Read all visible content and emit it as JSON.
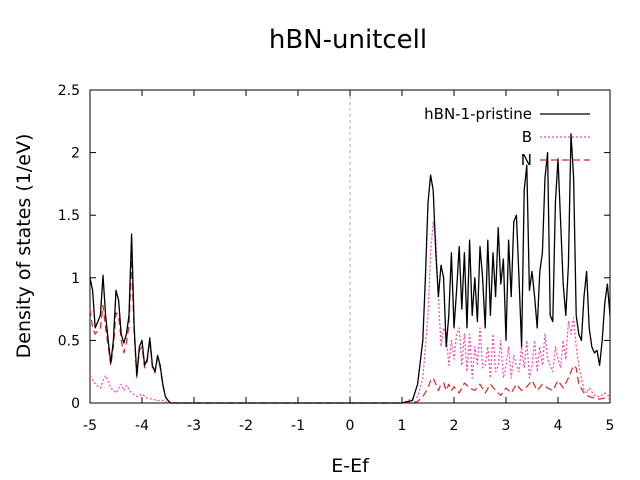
{
  "chart_data": {
    "type": "line",
    "title": "hBN-unitcell",
    "xlabel": "E-Ef",
    "ylabel": "Density of states (1/eV)",
    "xlim": [
      -5,
      5
    ],
    "ylim": [
      0,
      2.5
    ],
    "xticks": [
      -5,
      -4,
      -3,
      -2,
      -1,
      0,
      1,
      2,
      3,
      4,
      5
    ],
    "yticks": [
      0,
      0.5,
      1,
      1.5,
      2,
      2.5
    ],
    "xtick_labels": [
      "-5",
      "-4",
      "-3",
      "-2",
      "-1",
      "0",
      "1",
      "2",
      "3",
      "4",
      "5"
    ],
    "ytick_labels": [
      "0",
      "0.5",
      "1",
      "1.5",
      "2",
      "2.5"
    ],
    "grid": false,
    "legend_position": "top-right",
    "fermi_line_x": 0,
    "series": [
      {
        "name": "hBN-1-pristine",
        "color": "#000000",
        "dash": "solid",
        "x": [
          -5.0,
          -4.95,
          -4.9,
          -4.85,
          -4.8,
          -4.75,
          -4.7,
          -4.65,
          -4.6,
          -4.55,
          -4.5,
          -4.45,
          -4.4,
          -4.35,
          -4.3,
          -4.25,
          -4.2,
          -4.15,
          -4.1,
          -4.05,
          -4.0,
          -3.95,
          -3.9,
          -3.85,
          -3.8,
          -3.75,
          -3.7,
          -3.65,
          -3.6,
          -3.55,
          -3.5,
          -3.45,
          -3.4,
          -3.35,
          -3.3,
          -3.25,
          -3.2,
          -3.1,
          -3.0,
          1.0,
          1.2,
          1.3,
          1.4,
          1.45,
          1.5,
          1.55,
          1.6,
          1.65,
          1.7,
          1.75,
          1.8,
          1.85,
          1.9,
          1.95,
          2.0,
          2.05,
          2.1,
          2.15,
          2.2,
          2.25,
          2.3,
          2.35,
          2.4,
          2.45,
          2.5,
          2.55,
          2.6,
          2.65,
          2.7,
          2.75,
          2.8,
          2.85,
          2.9,
          2.95,
          3.0,
          3.05,
          3.1,
          3.15,
          3.2,
          3.25,
          3.3,
          3.35,
          3.4,
          3.45,
          3.5,
          3.55,
          3.6,
          3.65,
          3.7,
          3.75,
          3.8,
          3.85,
          3.9,
          3.95,
          4.0,
          4.05,
          4.1,
          4.15,
          4.2,
          4.25,
          4.3,
          4.35,
          4.4,
          4.45,
          4.5,
          4.55,
          4.6,
          4.65,
          4.7,
          4.75,
          4.8,
          4.85,
          4.9,
          4.95,
          5.0
        ],
        "y": [
          1.0,
          0.9,
          0.6,
          0.65,
          0.7,
          1.02,
          0.7,
          0.5,
          0.32,
          0.5,
          0.9,
          0.82,
          0.55,
          0.48,
          0.55,
          0.7,
          1.35,
          0.6,
          0.22,
          0.45,
          0.5,
          0.3,
          0.35,
          0.52,
          0.3,
          0.25,
          0.38,
          0.3,
          0.15,
          0.05,
          0.02,
          0.0,
          0.0,
          0.0,
          0.0,
          0.0,
          0.0,
          0.0,
          0.0,
          0.0,
          0.02,
          0.15,
          0.5,
          1.0,
          1.6,
          1.82,
          1.7,
          1.2,
          0.85,
          1.1,
          1.0,
          0.45,
          0.7,
          1.2,
          0.6,
          0.9,
          1.25,
          0.75,
          1.2,
          0.6,
          1.3,
          0.7,
          1.0,
          0.65,
          1.25,
          1.0,
          0.6,
          1.3,
          0.7,
          1.2,
          0.85,
          1.4,
          0.95,
          1.15,
          0.5,
          1.3,
          0.85,
          1.45,
          1.5,
          1.0,
          0.45,
          1.7,
          1.9,
          0.9,
          1.05,
          0.85,
          0.6,
          1.05,
          1.2,
          1.8,
          2.0,
          0.7,
          0.65,
          1.6,
          1.95,
          1.45,
          0.95,
          0.7,
          1.1,
          2.15,
          1.8,
          0.7,
          0.55,
          0.5,
          0.85,
          1.05,
          0.6,
          0.45,
          0.4,
          0.42,
          0.3,
          0.5,
          0.8,
          0.95,
          0.7
        ],
        "x_extra_note": ""
      },
      {
        "name": "B",
        "color": "#ff3fb4",
        "dash": "dotted",
        "x": [
          -5.0,
          -4.9,
          -4.8,
          -4.75,
          -4.7,
          -4.6,
          -4.5,
          -4.4,
          -4.35,
          -4.3,
          -4.2,
          -4.1,
          -4.0,
          -3.9,
          -3.8,
          -3.7,
          -3.6,
          -3.5,
          -3.4,
          -3.3,
          -3.0,
          1.0,
          1.3,
          1.4,
          1.5,
          1.55,
          1.6,
          1.65,
          1.7,
          1.75,
          1.8,
          1.85,
          1.9,
          1.95,
          2.0,
          2.05,
          2.1,
          2.15,
          2.2,
          2.25,
          2.3,
          2.35,
          2.4,
          2.45,
          2.5,
          2.55,
          2.6,
          2.65,
          2.7,
          2.75,
          2.8,
          2.85,
          2.9,
          2.95,
          3.0,
          3.05,
          3.1,
          3.15,
          3.2,
          3.25,
          3.3,
          3.35,
          3.4,
          3.45,
          3.5,
          3.55,
          3.6,
          3.65,
          3.7,
          3.75,
          3.8,
          3.85,
          3.9,
          3.95,
          4.0,
          4.05,
          4.1,
          4.15,
          4.2,
          4.25,
          4.3,
          4.35,
          4.4,
          4.45,
          4.5,
          4.55,
          4.6,
          4.7,
          4.8,
          4.9,
          5.0
        ],
        "y": [
          0.22,
          0.15,
          0.12,
          0.18,
          0.22,
          0.12,
          0.08,
          0.15,
          0.1,
          0.14,
          0.08,
          0.05,
          0.07,
          0.04,
          0.03,
          0.02,
          0.02,
          0.0,
          0.0,
          0.0,
          0.0,
          0.0,
          0.05,
          0.2,
          0.7,
          1.2,
          1.45,
          1.3,
          0.85,
          0.45,
          0.6,
          0.55,
          0.3,
          0.5,
          0.35,
          0.55,
          0.6,
          0.3,
          0.55,
          0.25,
          0.55,
          0.2,
          0.45,
          0.3,
          0.6,
          0.28,
          0.3,
          0.45,
          0.2,
          0.55,
          0.25,
          0.3,
          0.5,
          0.2,
          0.3,
          0.45,
          0.2,
          0.38,
          0.3,
          0.25,
          0.45,
          0.28,
          0.5,
          0.2,
          0.3,
          0.5,
          0.25,
          0.45,
          0.3,
          0.55,
          0.35,
          0.3,
          0.25,
          0.45,
          0.35,
          0.28,
          0.5,
          0.35,
          0.65,
          0.55,
          0.68,
          0.45,
          0.3,
          0.2,
          0.1,
          0.08,
          0.12,
          0.06,
          0.05,
          0.08,
          0.05
        ]
      },
      {
        "name": "N",
        "color": "#e02020",
        "dash": "dashed",
        "x": [
          -5.0,
          -4.95,
          -4.9,
          -4.85,
          -4.8,
          -4.75,
          -4.7,
          -4.65,
          -4.6,
          -4.55,
          -4.5,
          -4.45,
          -4.4,
          -4.35,
          -4.3,
          -4.25,
          -4.2,
          -4.15,
          -4.1,
          -4.05,
          -4.0,
          -3.95,
          -3.9,
          -3.85,
          -3.8,
          -3.75,
          -3.7,
          -3.65,
          -3.6,
          -3.55,
          -3.5,
          -3.45,
          -3.4,
          -3.35,
          -3.3,
          -3.25,
          -3.2,
          -3.1,
          -3.0,
          1.0,
          1.3,
          1.4,
          1.5,
          1.55,
          1.6,
          1.65,
          1.7,
          1.75,
          1.8,
          1.85,
          1.9,
          1.95,
          2.0,
          2.1,
          2.2,
          2.3,
          2.4,
          2.5,
          2.6,
          2.7,
          2.8,
          2.9,
          3.0,
          3.1,
          3.2,
          3.3,
          3.4,
          3.5,
          3.6,
          3.7,
          3.8,
          3.9,
          4.0,
          4.1,
          4.2,
          4.3,
          4.35,
          4.4,
          4.5,
          4.6,
          4.7,
          4.8,
          4.9,
          5.0
        ],
        "y": [
          0.75,
          0.6,
          0.55,
          0.58,
          0.6,
          0.78,
          0.6,
          0.45,
          0.3,
          0.45,
          0.72,
          0.7,
          0.5,
          0.4,
          0.48,
          0.62,
          1.15,
          0.55,
          0.2,
          0.42,
          0.45,
          0.28,
          0.33,
          0.5,
          0.28,
          0.24,
          0.36,
          0.28,
          0.14,
          0.05,
          0.02,
          0.0,
          0.0,
          0.0,
          0.0,
          0.0,
          0.0,
          0.0,
          0.0,
          0.0,
          0.01,
          0.05,
          0.12,
          0.18,
          0.2,
          0.15,
          0.1,
          0.15,
          0.16,
          0.1,
          0.15,
          0.1,
          0.13,
          0.08,
          0.16,
          0.12,
          0.1,
          0.15,
          0.08,
          0.15,
          0.1,
          0.06,
          0.12,
          0.08,
          0.15,
          0.1,
          0.13,
          0.18,
          0.1,
          0.15,
          0.12,
          0.1,
          0.18,
          0.12,
          0.2,
          0.3,
          0.28,
          0.15,
          0.08,
          0.05,
          0.04,
          0.03,
          0.04,
          0.03
        ]
      }
    ]
  }
}
